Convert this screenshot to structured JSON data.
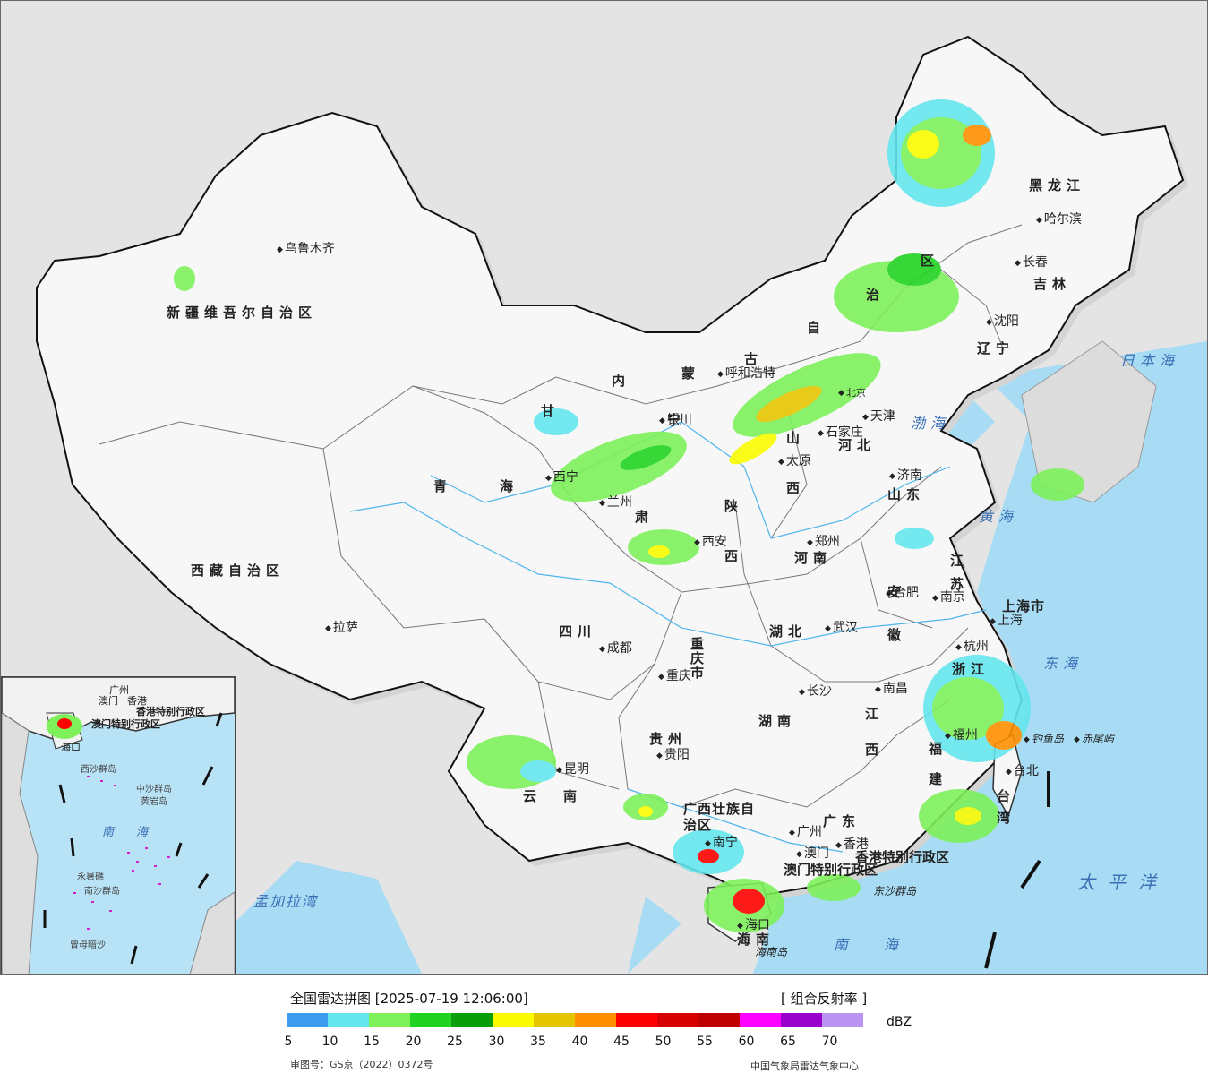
{
  "map": {
    "provinces": [
      {
        "name": "新疆维吾尔自治区",
        "style": "bold"
      },
      {
        "name": "西藏自治区",
        "style": "bold"
      },
      {
        "name": "青",
        "style": "bold"
      },
      {
        "name": "海",
        "style": "bold"
      },
      {
        "name": "内",
        "style": "bold"
      },
      {
        "name": "蒙",
        "style": "bold"
      },
      {
        "name": "古",
        "style": "bold"
      },
      {
        "name": "自",
        "style": "bold"
      },
      {
        "name": "治",
        "style": "bold"
      },
      {
        "name": "区",
        "style": "bold"
      },
      {
        "name": "黑龙江",
        "style": "bold"
      },
      {
        "name": "吉林",
        "style": "bold"
      },
      {
        "name": "辽宁",
        "style": "bold"
      },
      {
        "name": "河北",
        "style": "bold"
      },
      {
        "name": "山",
        "style": "bold"
      },
      {
        "name": "西",
        "style": "bold"
      },
      {
        "name": "山东",
        "style": "bold"
      },
      {
        "name": "河南",
        "style": "bold"
      },
      {
        "name": "陕",
        "style": "bold"
      },
      {
        "name": "西",
        "style": "bold"
      },
      {
        "name": "甘",
        "style": "bold"
      },
      {
        "name": "肃",
        "style": "bold"
      },
      {
        "name": "四川",
        "style": "bold"
      },
      {
        "name": "重庆市",
        "style": "bold"
      },
      {
        "name": "湖北",
        "style": "bold"
      },
      {
        "name": "安徽",
        "style": "bold"
      },
      {
        "name": "江苏",
        "style": "bold"
      },
      {
        "name": "上海市",
        "style": "bold"
      },
      {
        "name": "浙江",
        "style": "bold"
      },
      {
        "name": "江西",
        "style": "bold"
      },
      {
        "name": "湖南",
        "style": "bold"
      },
      {
        "name": "贵州",
        "style": "bold"
      },
      {
        "name": "云南",
        "style": "bold"
      },
      {
        "name": "福建",
        "style": "bold"
      },
      {
        "name": "台湾",
        "style": "bold"
      },
      {
        "name": "广西壮族自治区",
        "style": "bold"
      },
      {
        "name": "广东",
        "style": "bold"
      },
      {
        "name": "海南",
        "style": "bold"
      },
      {
        "name": "香港特别行政区",
        "style": "bold"
      },
      {
        "name": "澳门特别行政区",
        "style": "bold"
      },
      {
        "name": "宁",
        "style": "bold"
      }
    ],
    "cities": [
      "乌鲁木齐",
      "拉萨",
      "西宁",
      "兰州",
      "银川",
      "呼和浩特",
      "北京",
      "天津",
      "石家庄",
      "太原",
      "济南",
      "郑州",
      "西安",
      "成都",
      "重庆",
      "武汉",
      "合肥",
      "南京",
      "上海",
      "杭州",
      "南昌",
      "长沙",
      "福州",
      "台北",
      "贵阳",
      "昆明",
      "南宁",
      "广州",
      "香港",
      "澳门",
      "海口",
      "哈尔滨",
      "长春",
      "沈阳"
    ],
    "seas": [
      "日本海",
      "渤海",
      "黄海",
      "东海",
      "太平洋",
      "南海",
      "孟加拉湾"
    ],
    "islands": [
      "钓鱼岛",
      "赤尾屿",
      "东沙群岛",
      "海南岛"
    ],
    "inset": {
      "labels": [
        "广州",
        "澳门",
        "香港",
        "香港特别行政区",
        "澳门特别行政区",
        "海口",
        "南",
        "海",
        "中沙群岛",
        "黄岩岛",
        "永暑礁",
        "南沙群岛",
        "曾母暗沙",
        "西沙群岛"
      ]
    }
  },
  "legend": {
    "title": "全国雷达拼图 [2025-07-19 12:06:00]",
    "product": "[ 组合反射率 ]",
    "unit": "dBZ",
    "ticks": [
      "5",
      "10",
      "15",
      "20",
      "25",
      "30",
      "35",
      "40",
      "45",
      "50",
      "55",
      "60",
      "65",
      "70"
    ],
    "colors": [
      "#3d9cef",
      "#64e6ee",
      "#7df05a",
      "#22d322",
      "#0b9e0b",
      "#fbfb00",
      "#e5c500",
      "#ff8f00",
      "#ff0000",
      "#d60000",
      "#c00000",
      "#ff00ff",
      "#9900cc",
      "#b994f2"
    ],
    "review_number": "审图号：GS京（2022）0372号",
    "agency": "中国气象局雷达气象中心"
  }
}
